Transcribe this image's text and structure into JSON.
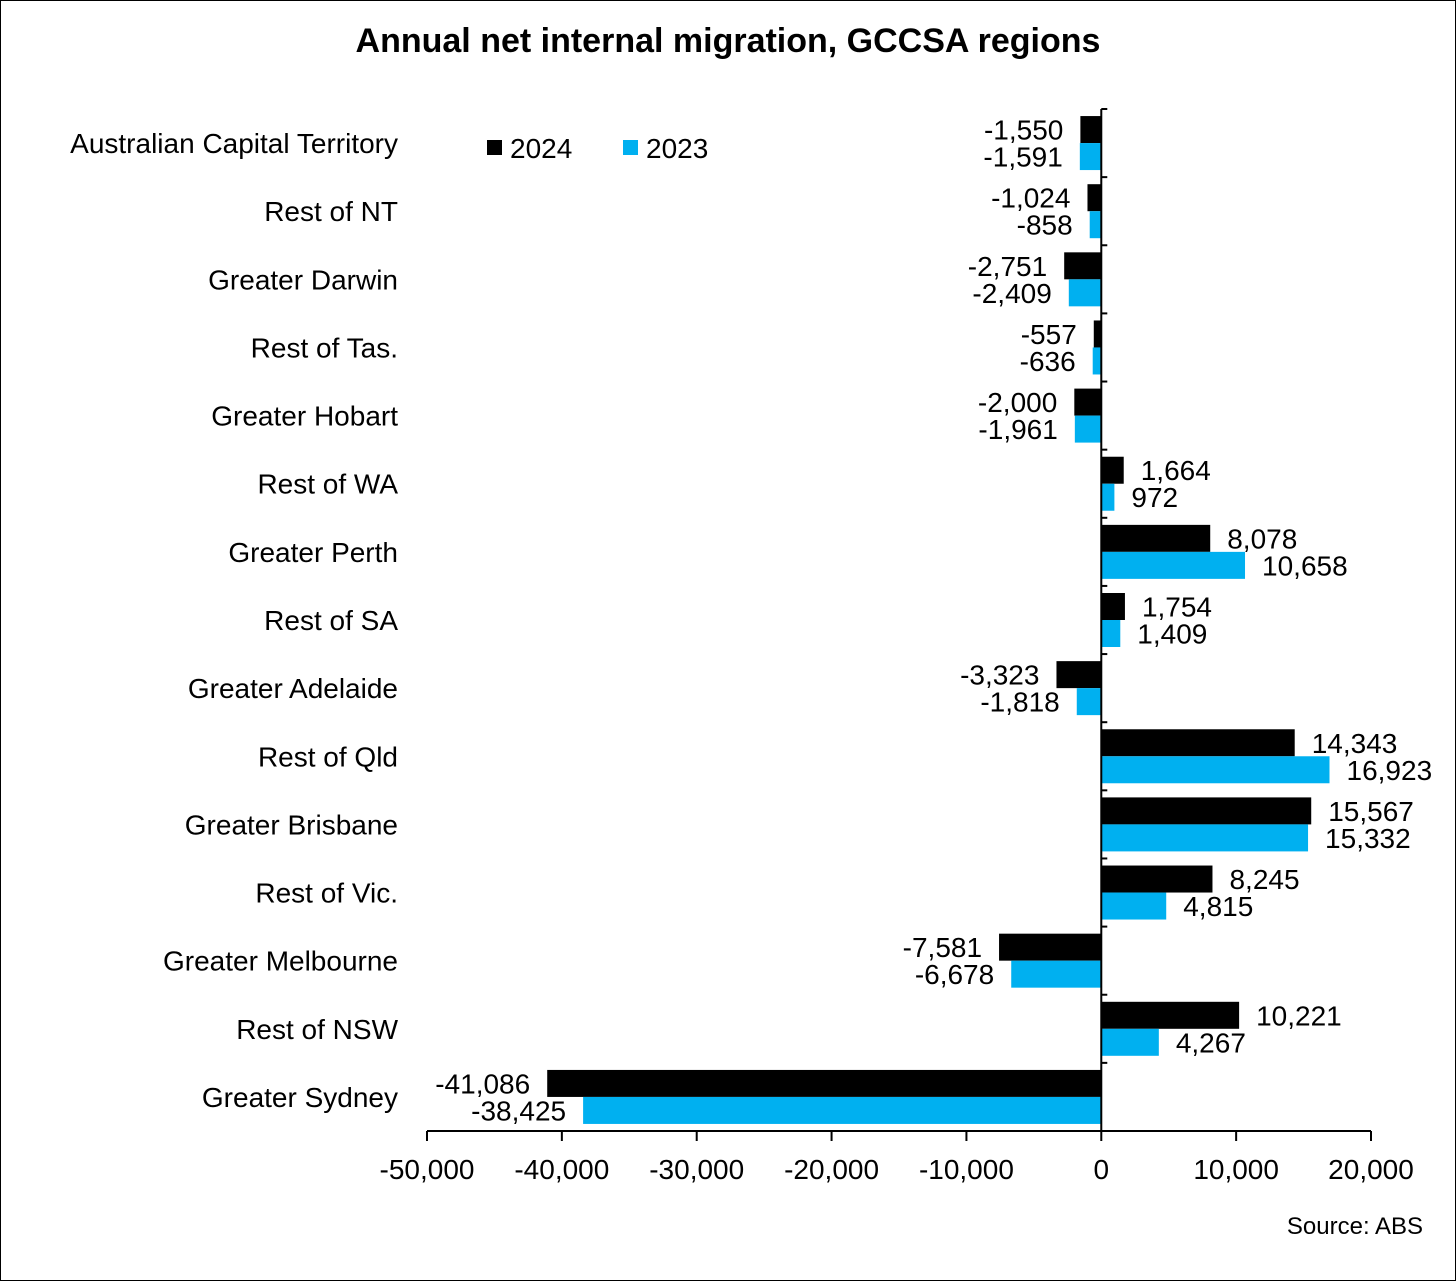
{
  "chart_data": {
    "type": "bar",
    "orientation": "horizontal",
    "title": "Annual net internal migration, GCCSA regions",
    "categories": [
      "Australian Capital Territory",
      "Rest of NT",
      "Greater Darwin",
      "Rest of Tas.",
      "Greater Hobart",
      "Rest of WA",
      "Greater Perth",
      "Rest of SA",
      "Greater Adelaide",
      "Rest of Qld",
      "Greater Brisbane",
      "Rest of Vic.",
      "Greater Melbourne",
      "Rest of NSW",
      "Greater Sydney"
    ],
    "series": [
      {
        "name": "2024",
        "color": "#000000",
        "values": [
          -1550,
          -1024,
          -2751,
          -557,
          -2000,
          1664,
          8078,
          1754,
          -3323,
          14343,
          15567,
          8245,
          -7581,
          10221,
          -41086
        ],
        "labels": [
          "-1,550",
          "-1,024",
          "-2,751",
          "-557",
          "-2,000",
          "1,664",
          "8,078",
          "1,754",
          "-3,323",
          "14,343",
          "15,567",
          "8,245",
          "-7,581",
          "10,221",
          "-41,086"
        ]
      },
      {
        "name": "2023",
        "color": "#00b0f0",
        "values": [
          -1591,
          -858,
          -2409,
          -636,
          -1961,
          972,
          10658,
          1409,
          -1818,
          16923,
          15332,
          4815,
          -6678,
          4267,
          -38425
        ],
        "labels": [
          "-1,591",
          "-858",
          "-2,409",
          "-636",
          "-1,961",
          "972",
          "10,658",
          "1,409",
          "-1,818",
          "16,923",
          "15,332",
          "4,815",
          "-6,678",
          "4,267",
          "-38,425"
        ]
      }
    ],
    "xlim": [
      -50000,
      20000
    ],
    "x_ticks": [
      -50000,
      -40000,
      -30000,
      -20000,
      -10000,
      0,
      10000,
      20000
    ],
    "x_tick_labels": [
      "-50,000",
      "-40,000",
      "-30,000",
      "-20,000",
      "-10,000",
      "0",
      "10,000",
      "20,000"
    ],
    "grid": false,
    "legend_position": "top-left"
  },
  "source_note": "Source: ABS"
}
